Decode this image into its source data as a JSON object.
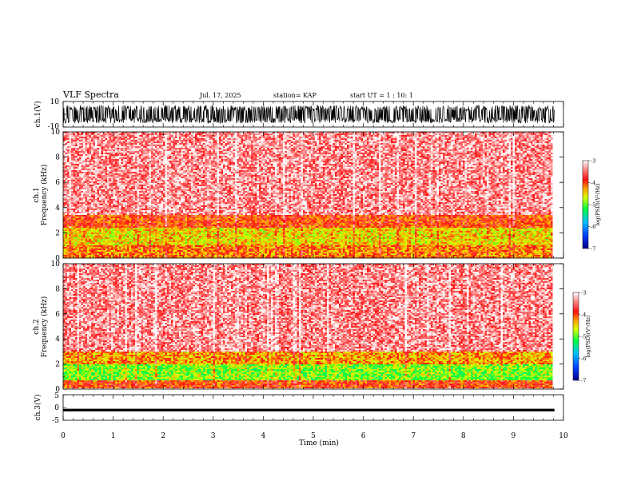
{
  "header": {
    "title": "VLF Spectra",
    "date": "Jul. 17, 2025",
    "station": "station= KAP",
    "start_ut": "start UT = 1 : 10: 1"
  },
  "chart_data": [
    {
      "type": "line",
      "name": "ch1-waveform",
      "ylabel": "ch.1(V)",
      "ylim": [
        -10,
        10
      ],
      "yticklabels": [
        "10",
        "-10"
      ],
      "xlim": [
        0,
        10
      ],
      "data_end_min": 9.82,
      "description_values": "dense oscillation roughly between -7 and 7 V over full record"
    },
    {
      "type": "heatmap",
      "name": "ch1-spectrogram",
      "ylabel_line1": "ch.1",
      "ylabel_line2": "Frequency (kHz)",
      "ylim": [
        0,
        10
      ],
      "yticks": [
        0,
        2,
        4,
        6,
        8,
        10
      ],
      "yticklabels": [
        "0",
        "2",
        "4",
        "6",
        "8",
        "10"
      ],
      "xlim": [
        0,
        10
      ],
      "data_end_min": 9.82,
      "colorbar": {
        "label": "log(PSD)(V²/Hz)",
        "range": [
          -7,
          -3
        ],
        "ticklabels": [
          "-3",
          "-4",
          "-5",
          "-6",
          "-7"
        ]
      },
      "bands": [
        {
          "fmin": 0.0,
          "fmax": 1.0,
          "level": -4.2
        },
        {
          "fmin": 1.0,
          "fmax": 2.4,
          "level": -4.5
        },
        {
          "fmin": 2.4,
          "fmax": 3.4,
          "level": -4.0
        },
        {
          "fmin": 3.4,
          "fmax": 10.0,
          "level": -3.4
        }
      ]
    },
    {
      "type": "heatmap",
      "name": "ch2-spectrogram",
      "ylabel_line1": "ch.2",
      "ylabel_line2": "Frequency (kHz)",
      "ylim": [
        0,
        10
      ],
      "yticks": [
        0,
        2,
        4,
        6,
        8,
        10
      ],
      "yticklabels": [
        "0",
        "2",
        "4",
        "6",
        "8",
        "10"
      ],
      "xlim": [
        0,
        10
      ],
      "data_end_min": 9.82,
      "colorbar": {
        "label": "log(PSD)(V²/Hz)",
        "range": [
          -7,
          -3
        ],
        "ticklabels": [
          "-3",
          "-4",
          "-5",
          "-6",
          "-7"
        ]
      },
      "bands": [
        {
          "fmin": 0.0,
          "fmax": 0.7,
          "level": -4.0
        },
        {
          "fmin": 0.7,
          "fmax": 2.0,
          "level": -4.9
        },
        {
          "fmin": 2.0,
          "fmax": 3.0,
          "level": -4.3
        },
        {
          "fmin": 3.0,
          "fmax": 10.0,
          "level": -3.4
        }
      ]
    },
    {
      "type": "line",
      "name": "ch3-waveform",
      "ylabel": "ch.3(V)",
      "ylim": [
        -5,
        5
      ],
      "yticks": [
        -5,
        0,
        5
      ],
      "yticklabels": [
        "5",
        "0",
        "-5"
      ],
      "xlim": [
        0,
        10
      ],
      "data_end_min": 9.82,
      "description_values": "narrow band near -1 V (about -1.5 to -0.5 V)"
    }
  ],
  "xaxis": {
    "label": "Time (min)",
    "ticks": [
      0,
      1,
      2,
      3,
      4,
      5,
      6,
      7,
      8,
      9,
      10
    ],
    "ticklabels": [
      "0",
      "1",
      "2",
      "3",
      "4",
      "5",
      "6",
      "7",
      "8",
      "9",
      "10"
    ]
  }
}
